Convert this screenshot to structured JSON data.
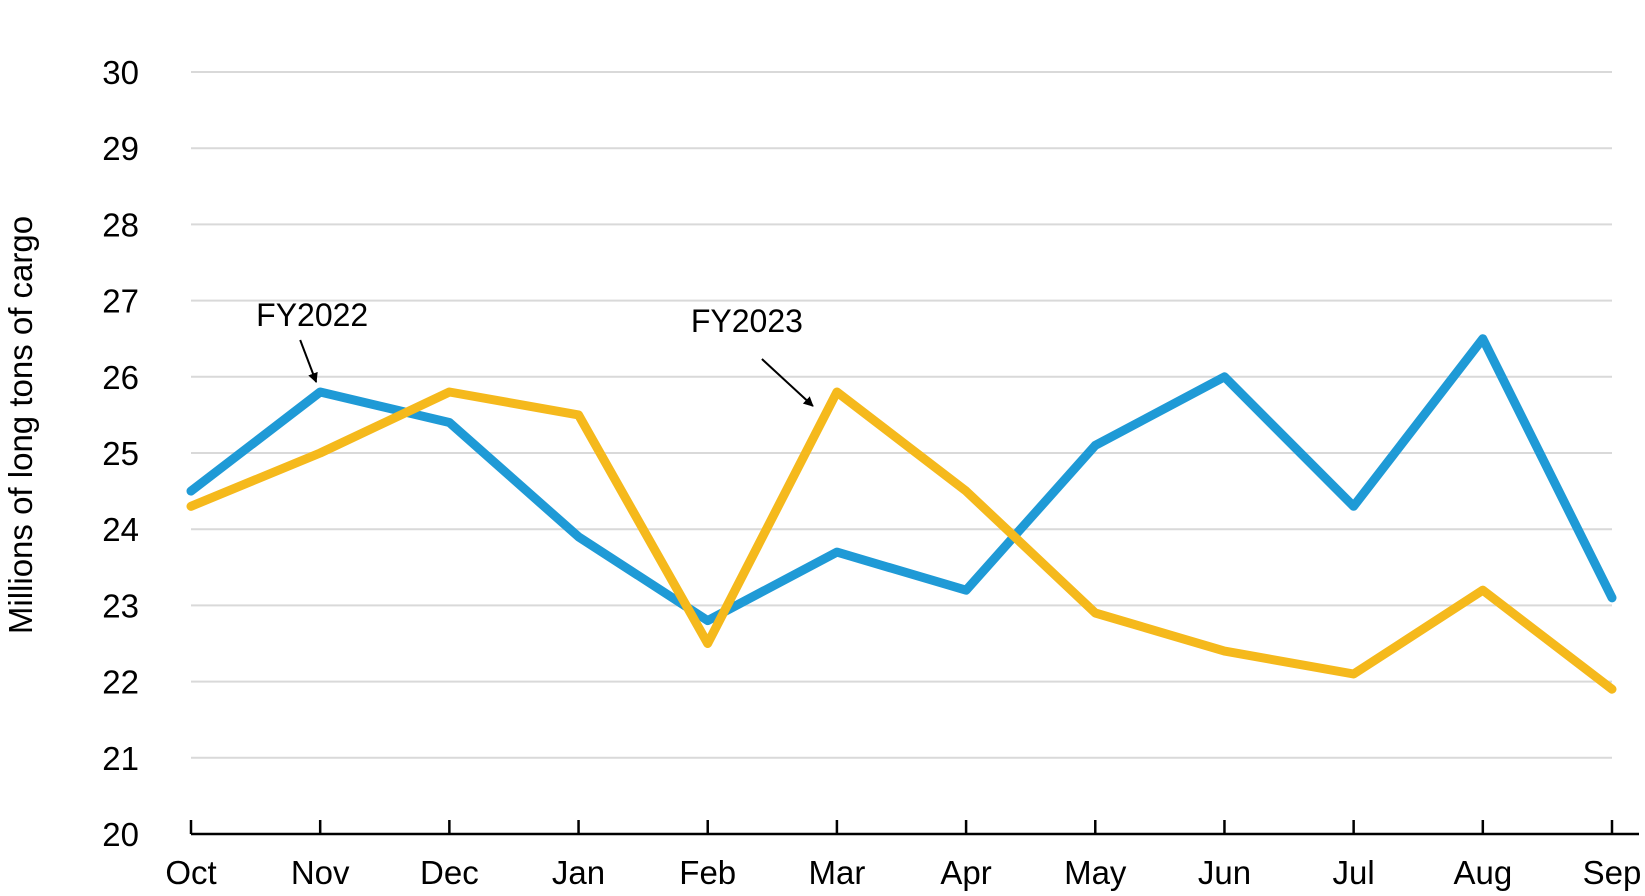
{
  "chart_data": {
    "type": "line",
    "title": "",
    "xlabel": "",
    "ylabel": "Millions of long tons of cargo",
    "categories": [
      "Oct",
      "Nov",
      "Dec",
      "Jan",
      "Feb",
      "Mar",
      "Apr",
      "May",
      "Jun",
      "Jul",
      "Aug",
      "Sep"
    ],
    "ylim": [
      20,
      30
    ],
    "yticks": [
      "20",
      "21",
      "22",
      "23",
      "24",
      "25",
      "26",
      "27",
      "28",
      "29",
      "30"
    ],
    "grid": true,
    "series": [
      {
        "name": "FY2022",
        "color": "#1f9ad6",
        "values": [
          24.5,
          25.8,
          25.4,
          23.9,
          22.8,
          23.7,
          23.2,
          25.1,
          26.0,
          24.3,
          26.5,
          23.1
        ]
      },
      {
        "name": "FY2023",
        "color": "#f5b91c",
        "values": [
          24.3,
          25.0,
          25.8,
          25.5,
          22.5,
          25.8,
          24.5,
          22.9,
          22.4,
          22.1,
          23.2,
          21.9
        ]
      }
    ],
    "annotations": [
      {
        "text": "FY2022",
        "series": "FY2022",
        "category": "Nov"
      },
      {
        "text": "FY2023",
        "series": "FY2023",
        "category": "Mar"
      }
    ]
  }
}
